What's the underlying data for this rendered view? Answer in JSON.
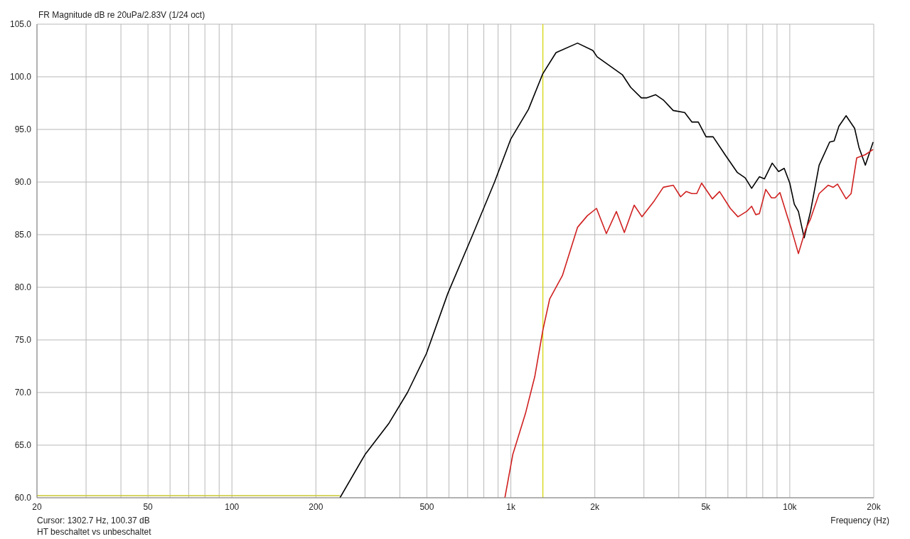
{
  "chart_data": {
    "type": "line",
    "title": "FR Magnitude dB re 20uPa/2.83V (1/24 oct)",
    "xlabel": "Frequency (Hz)",
    "log": "x",
    "grid": true,
    "marker": "none",
    "line_style": "solid",
    "xlim": [
      20,
      20000
    ],
    "xticks": [
      20,
      {
        "value": 30,
        "label": null
      },
      {
        "value": 40,
        "label": null
      },
      50,
      {
        "value": 60,
        "label": null
      },
      {
        "value": 70,
        "label": null
      },
      {
        "value": 80,
        "label": null
      },
      {
        "value": 90,
        "label": null
      },
      100,
      200,
      {
        "value": 300,
        "label": null
      },
      {
        "value": 400,
        "label": null
      },
      500,
      {
        "value": 600,
        "label": null
      },
      {
        "value": 700,
        "label": null
      },
      {
        "value": 800,
        "label": null
      },
      {
        "value": 900,
        "label": null
      },
      {
        "value": 1000,
        "label": "1k"
      },
      {
        "value": 2000,
        "label": "2k"
      },
      {
        "value": 3000,
        "label": null
      },
      {
        "value": 4000,
        "label": null
      },
      {
        "value": 5000,
        "label": "5k"
      },
      {
        "value": 6000,
        "label": null
      },
      {
        "value": 7000,
        "label": null
      },
      {
        "value": 8000,
        "label": null
      },
      {
        "value": 9000,
        "label": null
      },
      {
        "value": 10000,
        "label": "10k"
      },
      {
        "value": 20000,
        "label": "20k"
      }
    ],
    "ylim": [
      60,
      105
    ],
    "yticks": [
      {
        "value": 60,
        "label": "60.0"
      },
      {
        "value": 65,
        "label": "65.0"
      },
      {
        "value": 70,
        "label": "70.0"
      },
      {
        "value": 75,
        "label": "75.0"
      },
      {
        "value": 80,
        "label": "80.0"
      },
      {
        "value": 85,
        "label": "85.0"
      },
      {
        "value": 90,
        "label": "90.0"
      },
      {
        "value": 95,
        "label": "95.0"
      },
      {
        "value": 100,
        "label": "100.0"
      },
      {
        "value": 105,
        "label": "105.0"
      }
    ],
    "ref_lines": [
      {
        "axis": "x",
        "value": 1302.7,
        "color": "#d4d400"
      }
    ],
    "annotations": [
      "Cursor: 1302.7 Hz, 100.37 dB",
      "HT beschaltet vs unbeschaltet"
    ],
    "series": [
      {
        "color": "#c8c832",
        "x": [
          20,
          244
        ],
        "values": [
          60.2,
          60.2
        ]
      },
      {
        "color": "#000000",
        "x": [
          244,
          300,
          366,
          426,
          498,
          594,
          730,
          874,
          1000,
          1156,
          1302,
          1452,
          1734,
          1968,
          2038,
          2510,
          2688,
          2936,
          3076,
          3302,
          3520,
          3820,
          4200,
          4460,
          4700,
          5010,
          5310,
          5860,
          6490,
          6920,
          7300,
          7780,
          8110,
          8650,
          9120,
          9550,
          10000,
          10380,
          10740,
          11260,
          11870,
          12740,
          13900,
          14420,
          15000,
          15920,
          17080,
          17700,
          18660,
          19900
        ],
        "values": [
          60.0,
          64.1,
          67.1,
          70.0,
          73.7,
          79.4,
          85.0,
          90.0,
          94.1,
          96.9,
          100.3,
          102.3,
          103.2,
          102.5,
          101.9,
          100.2,
          99.0,
          98.0,
          98.0,
          98.3,
          97.8,
          96.8,
          96.6,
          95.7,
          95.7,
          94.3,
          94.3,
          92.6,
          90.9,
          90.4,
          89.4,
          90.5,
          90.3,
          91.8,
          91.0,
          91.3,
          89.9,
          87.9,
          87.2,
          84.7,
          87.2,
          91.6,
          93.8,
          93.9,
          95.3,
          96.3,
          95.1,
          93.3,
          91.6,
          93.8
        ]
      },
      {
        "color": "#d02020",
        "x": [
          952,
          1016,
          1128,
          1218,
          1302,
          1378,
          1530,
          1734,
          1880,
          2028,
          2200,
          2390,
          2552,
          2768,
          2952,
          3264,
          3520,
          3820,
          4060,
          4250,
          4460,
          4640,
          4830,
          5280,
          5600,
          6120,
          6520,
          7000,
          7300,
          7550,
          7780,
          8200,
          8600,
          8850,
          9220,
          9780,
          10140,
          10740,
          11400,
          11870,
          12740,
          13740,
          14320,
          14830,
          15920,
          16590,
          17380,
          18660,
          19900
        ],
        "values": [
          60.0,
          64.1,
          68.0,
          71.5,
          75.9,
          78.9,
          81.1,
          85.7,
          86.8,
          87.5,
          85.1,
          87.2,
          85.2,
          87.8,
          86.7,
          88.2,
          89.5,
          89.7,
          88.6,
          89.1,
          88.9,
          88.9,
          89.9,
          88.4,
          89.1,
          87.5,
          86.7,
          87.2,
          87.7,
          86.9,
          87.0,
          89.3,
          88.5,
          88.5,
          89.0,
          86.8,
          85.5,
          83.2,
          85.5,
          86.5,
          88.9,
          89.7,
          89.5,
          89.8,
          88.4,
          88.9,
          92.3,
          92.6,
          93.1
        ]
      }
    ]
  }
}
